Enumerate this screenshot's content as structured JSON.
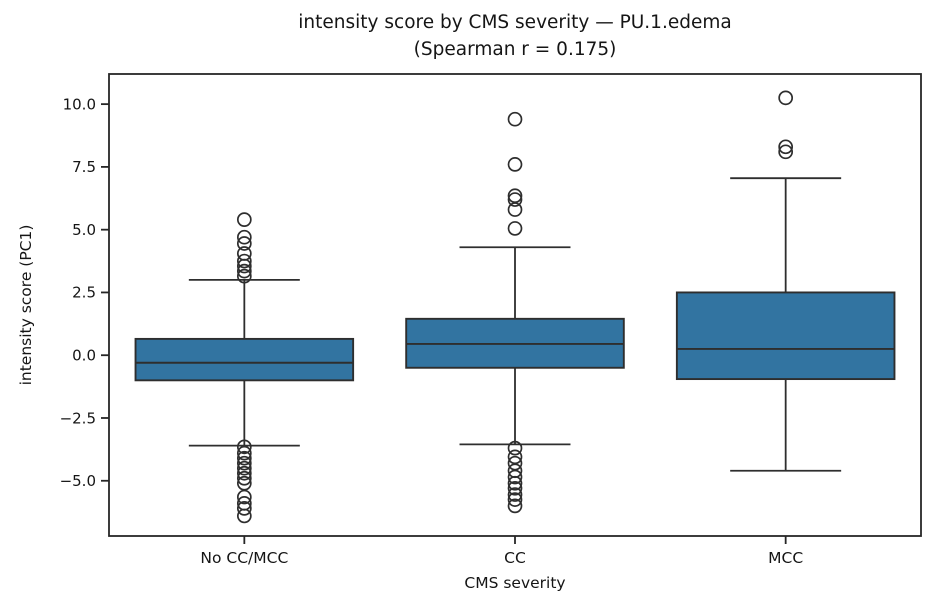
{
  "figure": {
    "title_line1": "intensity score by CMS severity — PU.1.edema",
    "title_line2": "(Spearman r = 0.175)"
  },
  "chart_data": {
    "type": "boxplot",
    "title": "intensity score by CMS severity — PU.1.edema (Spearman r = 0.175)",
    "xlabel": "CMS severity",
    "ylabel": "intensity score (PC1)",
    "ylim": [
      -7.2,
      11.2
    ],
    "grid": false,
    "yticks": {
      "values": [
        10.0,
        7.5,
        5.0,
        2.5,
        0.0,
        -2.5,
        -5.0
      ],
      "labels": [
        "10.0",
        "7.5",
        "5.0",
        "2.5",
        "0.0",
        "−2.5",
        "−5.0"
      ]
    },
    "categories": [
      "No CC/MCC",
      "CC",
      "MCC"
    ],
    "colors": {
      "box_fill": "#3274a1",
      "line": "#2e2e2e",
      "spine": "#262626",
      "text": "#151515"
    },
    "series": [
      {
        "category": "No CC/MCC",
        "whisker_low": -3.6,
        "q1": -1.0,
        "median": -0.3,
        "q3": 0.65,
        "whisker_high": 3.0,
        "outliers_high": [
          5.4,
          4.7,
          4.45,
          4.05,
          3.75,
          3.55,
          3.35,
          3.15
        ],
        "outliers_low": [
          -3.65,
          -3.9,
          -4.1,
          -4.3,
          -4.5,
          -4.7,
          -4.9,
          -5.1,
          -5.65,
          -5.9,
          -6.1,
          -6.4
        ]
      },
      {
        "category": "CC",
        "whisker_low": -3.55,
        "q1": -0.5,
        "median": 0.45,
        "q3": 1.45,
        "whisker_high": 4.3,
        "outliers_high": [
          9.4,
          7.6,
          6.35,
          6.2,
          5.8,
          5.05
        ],
        "outliers_low": [
          -3.7,
          -4.05,
          -4.3,
          -4.6,
          -4.85,
          -5.1,
          -5.3,
          -5.55,
          -5.75,
          -6.0
        ]
      },
      {
        "category": "MCC",
        "whisker_low": -4.6,
        "q1": -0.95,
        "median": 0.25,
        "q3": 2.5,
        "whisker_high": 7.05,
        "outliers_high": [
          10.25,
          8.3,
          8.1
        ],
        "outliers_low": []
      }
    ]
  }
}
